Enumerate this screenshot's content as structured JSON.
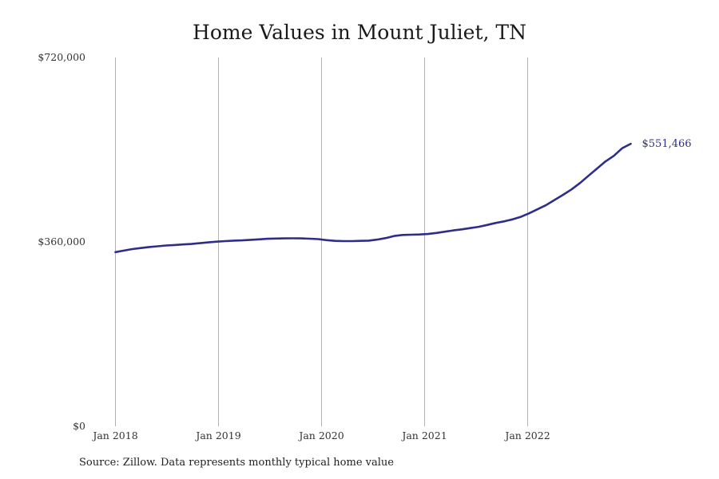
{
  "chart_data": {
    "type": "line",
    "title": "Home Values in Mount Juliet, TN",
    "source": "Source: Zillow. Data represents monthly typical home value",
    "x_tick_labels": [
      "Jan 2018",
      "Jan 2019",
      "Jan 2020",
      "Jan 2021",
      "Jan 2022"
    ],
    "y_tick_labels": [
      "$0",
      "$360,000",
      "$720,000"
    ],
    "ylim": [
      0,
      720000
    ],
    "xlim_months": [
      0,
      60
    ],
    "series_color": "#2e2e8a",
    "grid": "vertical",
    "end_label": "$551,466",
    "series": [
      {
        "values": [
          340000,
          343000,
          346000,
          348000,
          350000,
          351500,
          353000,
          354000,
          355000,
          356000,
          357500,
          359000,
          360500,
          361500,
          362500,
          363000,
          364000,
          365000,
          366000,
          366500,
          366800,
          367000,
          366800,
          366300,
          365500,
          363500,
          362000,
          361500,
          361500,
          362000,
          362500,
          364500,
          367500,
          371500,
          373500,
          374000,
          374500,
          375500,
          377500,
          380000,
          382500,
          384500,
          387000,
          389500,
          393000,
          397000,
          400000,
          404000,
          409000,
          416000,
          424000,
          432000,
          442000,
          452000,
          462500,
          475000,
          489000,
          503000,
          517000,
          528000,
          543000,
          551466
        ]
      }
    ]
  },
  "note": "Extended Jan 2018 - Dec 2022 monthly typical home value"
}
